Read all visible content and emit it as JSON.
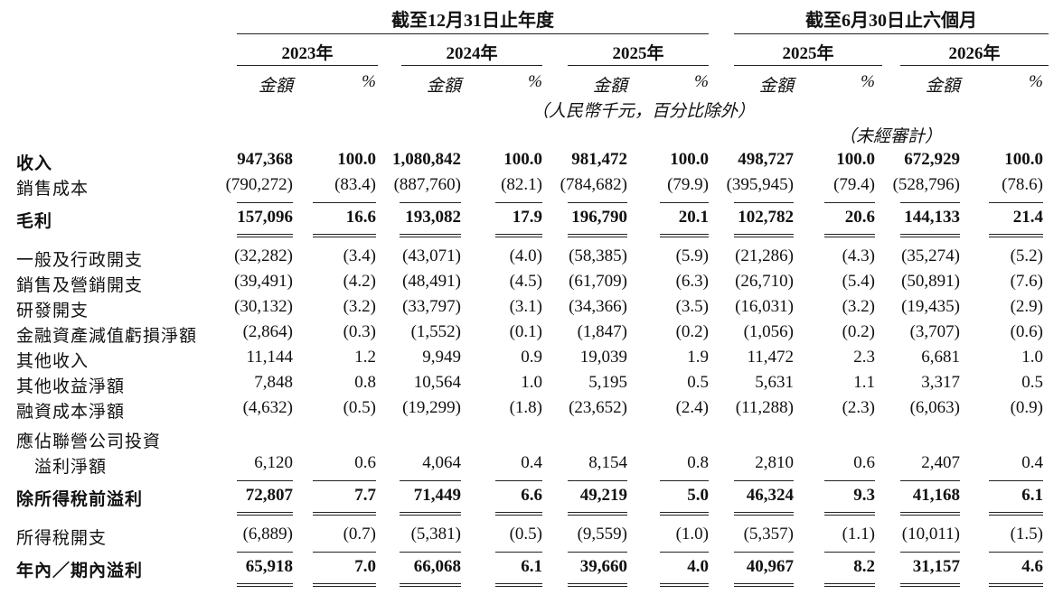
{
  "header": {
    "group1": "截至12月31日止年度",
    "group2": "截至6月30日止六個月",
    "years": [
      "2023年",
      "2024年",
      "2025年",
      "2025年",
      "2026年"
    ],
    "amount_label": "金額",
    "pct_label": "%",
    "unit_note": "（人民幣千元，百分比除外）",
    "unaudited_note": "（未經審計）"
  },
  "rows": [
    {
      "label": "收入",
      "bold": true,
      "values": [
        "947,368",
        "100.0",
        "1,080,842",
        "100.0",
        "981,472",
        "100.0",
        "498,727",
        "100.0",
        "672,929",
        "100.0"
      ]
    },
    {
      "label": "銷售成本",
      "bold": false,
      "values": [
        "(790,272)",
        "(83.4)",
        "(887,760)",
        "(82.1)",
        "(784,682)",
        "(79.9)",
        "(395,945)",
        "(79.4)",
        "(528,796)",
        "(78.6)"
      ]
    },
    {
      "label": "毛利",
      "bold": true,
      "values": [
        "157,096",
        "16.6",
        "193,082",
        "17.9",
        "196,790",
        "20.1",
        "102,782",
        "20.6",
        "144,133",
        "21.4"
      ]
    },
    {
      "label": "一般及行政開支",
      "bold": false,
      "values": [
        "(32,282)",
        "(3.4)",
        "(43,071)",
        "(4.0)",
        "(58,385)",
        "(5.9)",
        "(21,286)",
        "(4.3)",
        "(35,274)",
        "(5.2)"
      ]
    },
    {
      "label": "銷售及營銷開支",
      "bold": false,
      "values": [
        "(39,491)",
        "(4.2)",
        "(48,491)",
        "(4.5)",
        "(61,709)",
        "(6.3)",
        "(26,710)",
        "(5.4)",
        "(50,891)",
        "(7.6)"
      ]
    },
    {
      "label": "研發開支",
      "bold": false,
      "values": [
        "(30,132)",
        "(3.2)",
        "(33,797)",
        "(3.1)",
        "(34,366)",
        "(3.5)",
        "(16,031)",
        "(3.2)",
        "(19,435)",
        "(2.9)"
      ]
    },
    {
      "label": "金融資產減值虧損淨額",
      "bold": false,
      "values": [
        "(2,864)",
        "(0.3)",
        "(1,552)",
        "(0.1)",
        "(1,847)",
        "(0.2)",
        "(1,056)",
        "(0.2)",
        "(3,707)",
        "(0.6)"
      ]
    },
    {
      "label": "其他收入",
      "bold": false,
      "values": [
        "11,144",
        "1.2",
        "9,949",
        "0.9",
        "19,039",
        "1.9",
        "11,472",
        "2.3",
        "6,681",
        "1.0"
      ]
    },
    {
      "label": "其他收益淨額",
      "bold": false,
      "values": [
        "7,848",
        "0.8",
        "10,564",
        "1.0",
        "5,195",
        "0.5",
        "5,631",
        "1.1",
        "3,317",
        "0.5"
      ]
    },
    {
      "label": "融資成本淨額",
      "bold": false,
      "values": [
        "(4,632)",
        "(0.5)",
        "(19,299)",
        "(1.8)",
        "(23,652)",
        "(2.4)",
        "(11,288)",
        "(2.3)",
        "(6,063)",
        "(0.9)"
      ]
    },
    {
      "label": "應佔聯營公司投資",
      "bold": false,
      "values": []
    },
    {
      "label": "　溢利淨額",
      "bold": false,
      "values": [
        "6,120",
        "0.6",
        "4,064",
        "0.4",
        "8,154",
        "0.8",
        "2,810",
        "0.6",
        "2,407",
        "0.4"
      ]
    },
    {
      "label": "除所得稅前溢利",
      "bold": true,
      "values": [
        "72,807",
        "7.7",
        "71,449",
        "6.6",
        "49,219",
        "5.0",
        "46,324",
        "9.3",
        "41,168",
        "6.1"
      ]
    },
    {
      "label": "所得稅開支",
      "bold": false,
      "values": [
        "(6,889)",
        "(0.7)",
        "(5,381)",
        "(0.5)",
        "(9,559)",
        "(1.0)",
        "(5,357)",
        "(1.1)",
        "(10,011)",
        "(1.5)"
      ]
    },
    {
      "label": "年內／期內溢利",
      "bold": true,
      "values": [
        "65,918",
        "7.0",
        "66,068",
        "6.1",
        "39,660",
        "4.0",
        "40,967",
        "8.2",
        "31,157",
        "4.6"
      ]
    }
  ]
}
